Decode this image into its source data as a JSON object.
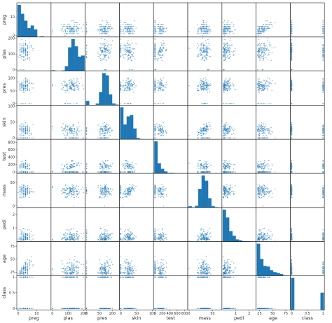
{
  "chart_data": {
    "type": "scatter-matrix",
    "title": "",
    "series_color": "#1f77b4",
    "variables": [
      "preg",
      "plas",
      "pres",
      "skin",
      "test",
      "mass",
      "pedi",
      "age",
      "class"
    ],
    "ranges": {
      "preg": [
        0,
        17
      ],
      "plas": [
        0,
        200
      ],
      "pres": [
        0,
        122
      ],
      "skin": [
        0,
        99
      ],
      "test": [
        0,
        846
      ],
      "mass": [
        0,
        67
      ],
      "pedi": [
        0.08,
        2.42
      ],
      "age": [
        21,
        81
      ],
      "class": [
        0,
        1
      ]
    },
    "ticks": {
      "preg": [
        0,
        10
      ],
      "plas": [
        0,
        100,
        200
      ],
      "pres": [
        0,
        50,
        100
      ],
      "skin": [
        0,
        50,
        100
      ],
      "test": [
        0,
        200,
        400,
        600,
        800
      ],
      "mass": [
        0,
        50
      ],
      "pedi": [
        1,
        2
      ],
      "age": [
        25,
        50,
        75
      ],
      "class": [
        0.0,
        0.5,
        1.0
      ]
    },
    "histograms": {
      "preg": [
        246,
        178,
        125,
        68,
        88,
        57,
        0,
        4,
        1,
        1
      ],
      "plas": [
        5,
        0,
        0,
        4,
        32,
        156,
        211,
        163,
        95,
        102
      ],
      "pres": [
        35,
        1,
        2,
        13,
        107,
        261,
        243,
        87,
        14,
        5
      ],
      "skin": [
        231,
        107,
        165,
        175,
        78,
        9,
        2,
        0,
        0,
        1
      ],
      "test": [
        487,
        155,
        70,
        30,
        8,
        9,
        5,
        1,
        2,
        1
      ],
      "mass": [
        11,
        0,
        15,
        156,
        268,
        224,
        78,
        12,
        3,
        1
      ],
      "pedi": [
        318,
        240,
        105,
        59,
        22,
        13,
        4,
        4,
        2,
        1
      ],
      "age": [
        300,
        157,
        92,
        86,
        52,
        34,
        26,
        16,
        4,
        1
      ],
      "class": [
        500,
        0,
        0,
        0,
        0,
        0,
        0,
        0,
        0,
        268
      ]
    }
  }
}
